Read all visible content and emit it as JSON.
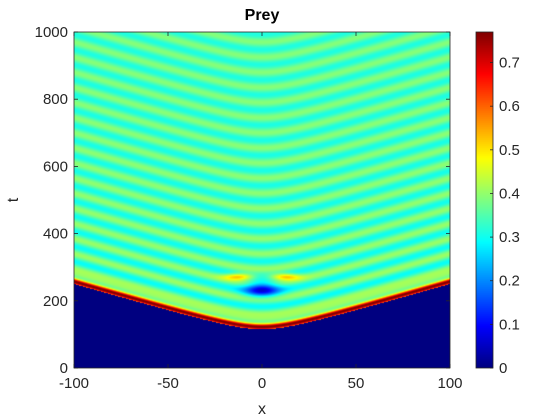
{
  "chart_data": {
    "type": "heatmap",
    "title": "Prey",
    "xlabel": "x",
    "ylabel": "t",
    "xlim": [
      -100,
      100
    ],
    "ylim": [
      0,
      1000
    ],
    "x_ticks": [
      -100,
      -50,
      0,
      50,
      100
    ],
    "y_ticks": [
      0,
      200,
      400,
      600,
      800,
      1000
    ],
    "colorbar": {
      "colormap": "jet",
      "range": [
        0,
        0.77
      ],
      "ticks": [
        0,
        0.1,
        0.2,
        0.3,
        0.4,
        0.5,
        0.6,
        0.7
      ]
    },
    "field": {
      "description_values": {
        "zero_region_value": 0,
        "front_peak_value": 0.75,
        "oscillation_mean": 0.35,
        "oscillation_amplitude": 0.06,
        "oscillation_period_t": 45,
        "central_dip_value": 0.1,
        "side_lobe_value": 0.55
      },
      "front_arrival_t": {
        "at_x_0": 115,
        "at_x_pm100": 250
      },
      "central_dip_center": [
        0,
        235
      ],
      "side_lobe_centers": [
        [
          -12,
          272
        ],
        [
          12,
          272
        ]
      ]
    }
  }
}
